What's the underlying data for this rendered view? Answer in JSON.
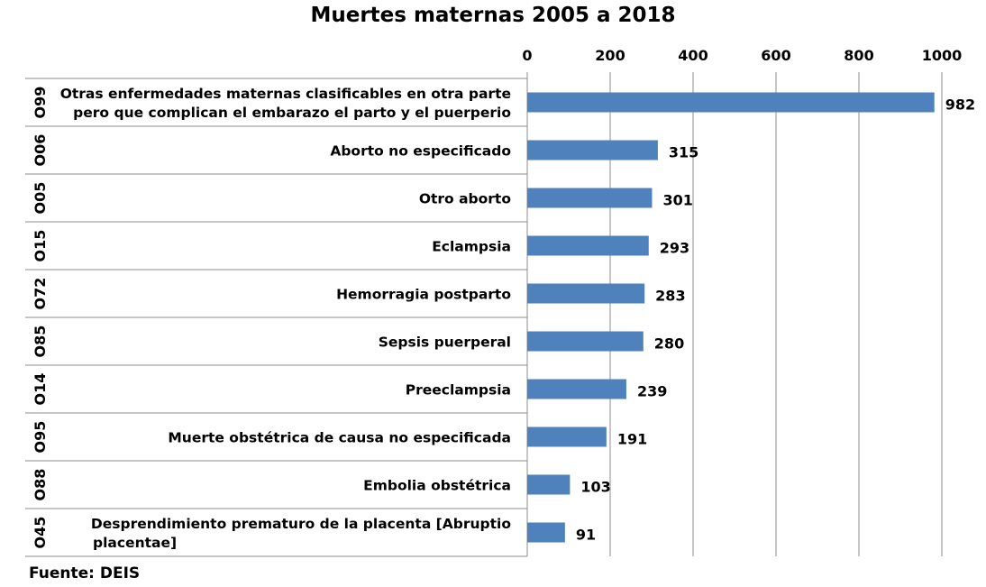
{
  "chart_data": {
    "type": "bar",
    "orientation": "horizontal",
    "title": "Muertes maternas 2005 a 2018",
    "source": "Fuente: DEIS",
    "codes": [
      "O99",
      "O06",
      "O05",
      "O15",
      "O72",
      "O85",
      "O14",
      "O95",
      "O88",
      "O45"
    ],
    "categories": [
      [
        "Otras enfermedades maternas clasificables en otra parte",
        "pero que complican el embarazo el parto y el puerperio"
      ],
      [
        "Aborto no especificado"
      ],
      [
        "Otro aborto"
      ],
      [
        "Eclampsia"
      ],
      [
        "Hemorragia postparto"
      ],
      [
        "Sepsis puerperal"
      ],
      [
        "Preeclampsia"
      ],
      [
        "Muerte obstétrica de causa no especificada"
      ],
      [
        "Embolia obstétrica"
      ],
      [
        "Desprendimiento prematuro de la placenta [Abruptio",
        "placentae]"
      ]
    ],
    "values": [
      982,
      315,
      301,
      293,
      283,
      280,
      239,
      191,
      103,
      91
    ],
    "xlim": [
      0,
      1000
    ],
    "xticks": [
      0,
      200,
      400,
      600,
      800,
      1000
    ],
    "axis_position": "top",
    "grid": true,
    "data_labels": true,
    "colors": {
      "bar": "#4f81bd",
      "grid": "#8c8c8c"
    }
  }
}
